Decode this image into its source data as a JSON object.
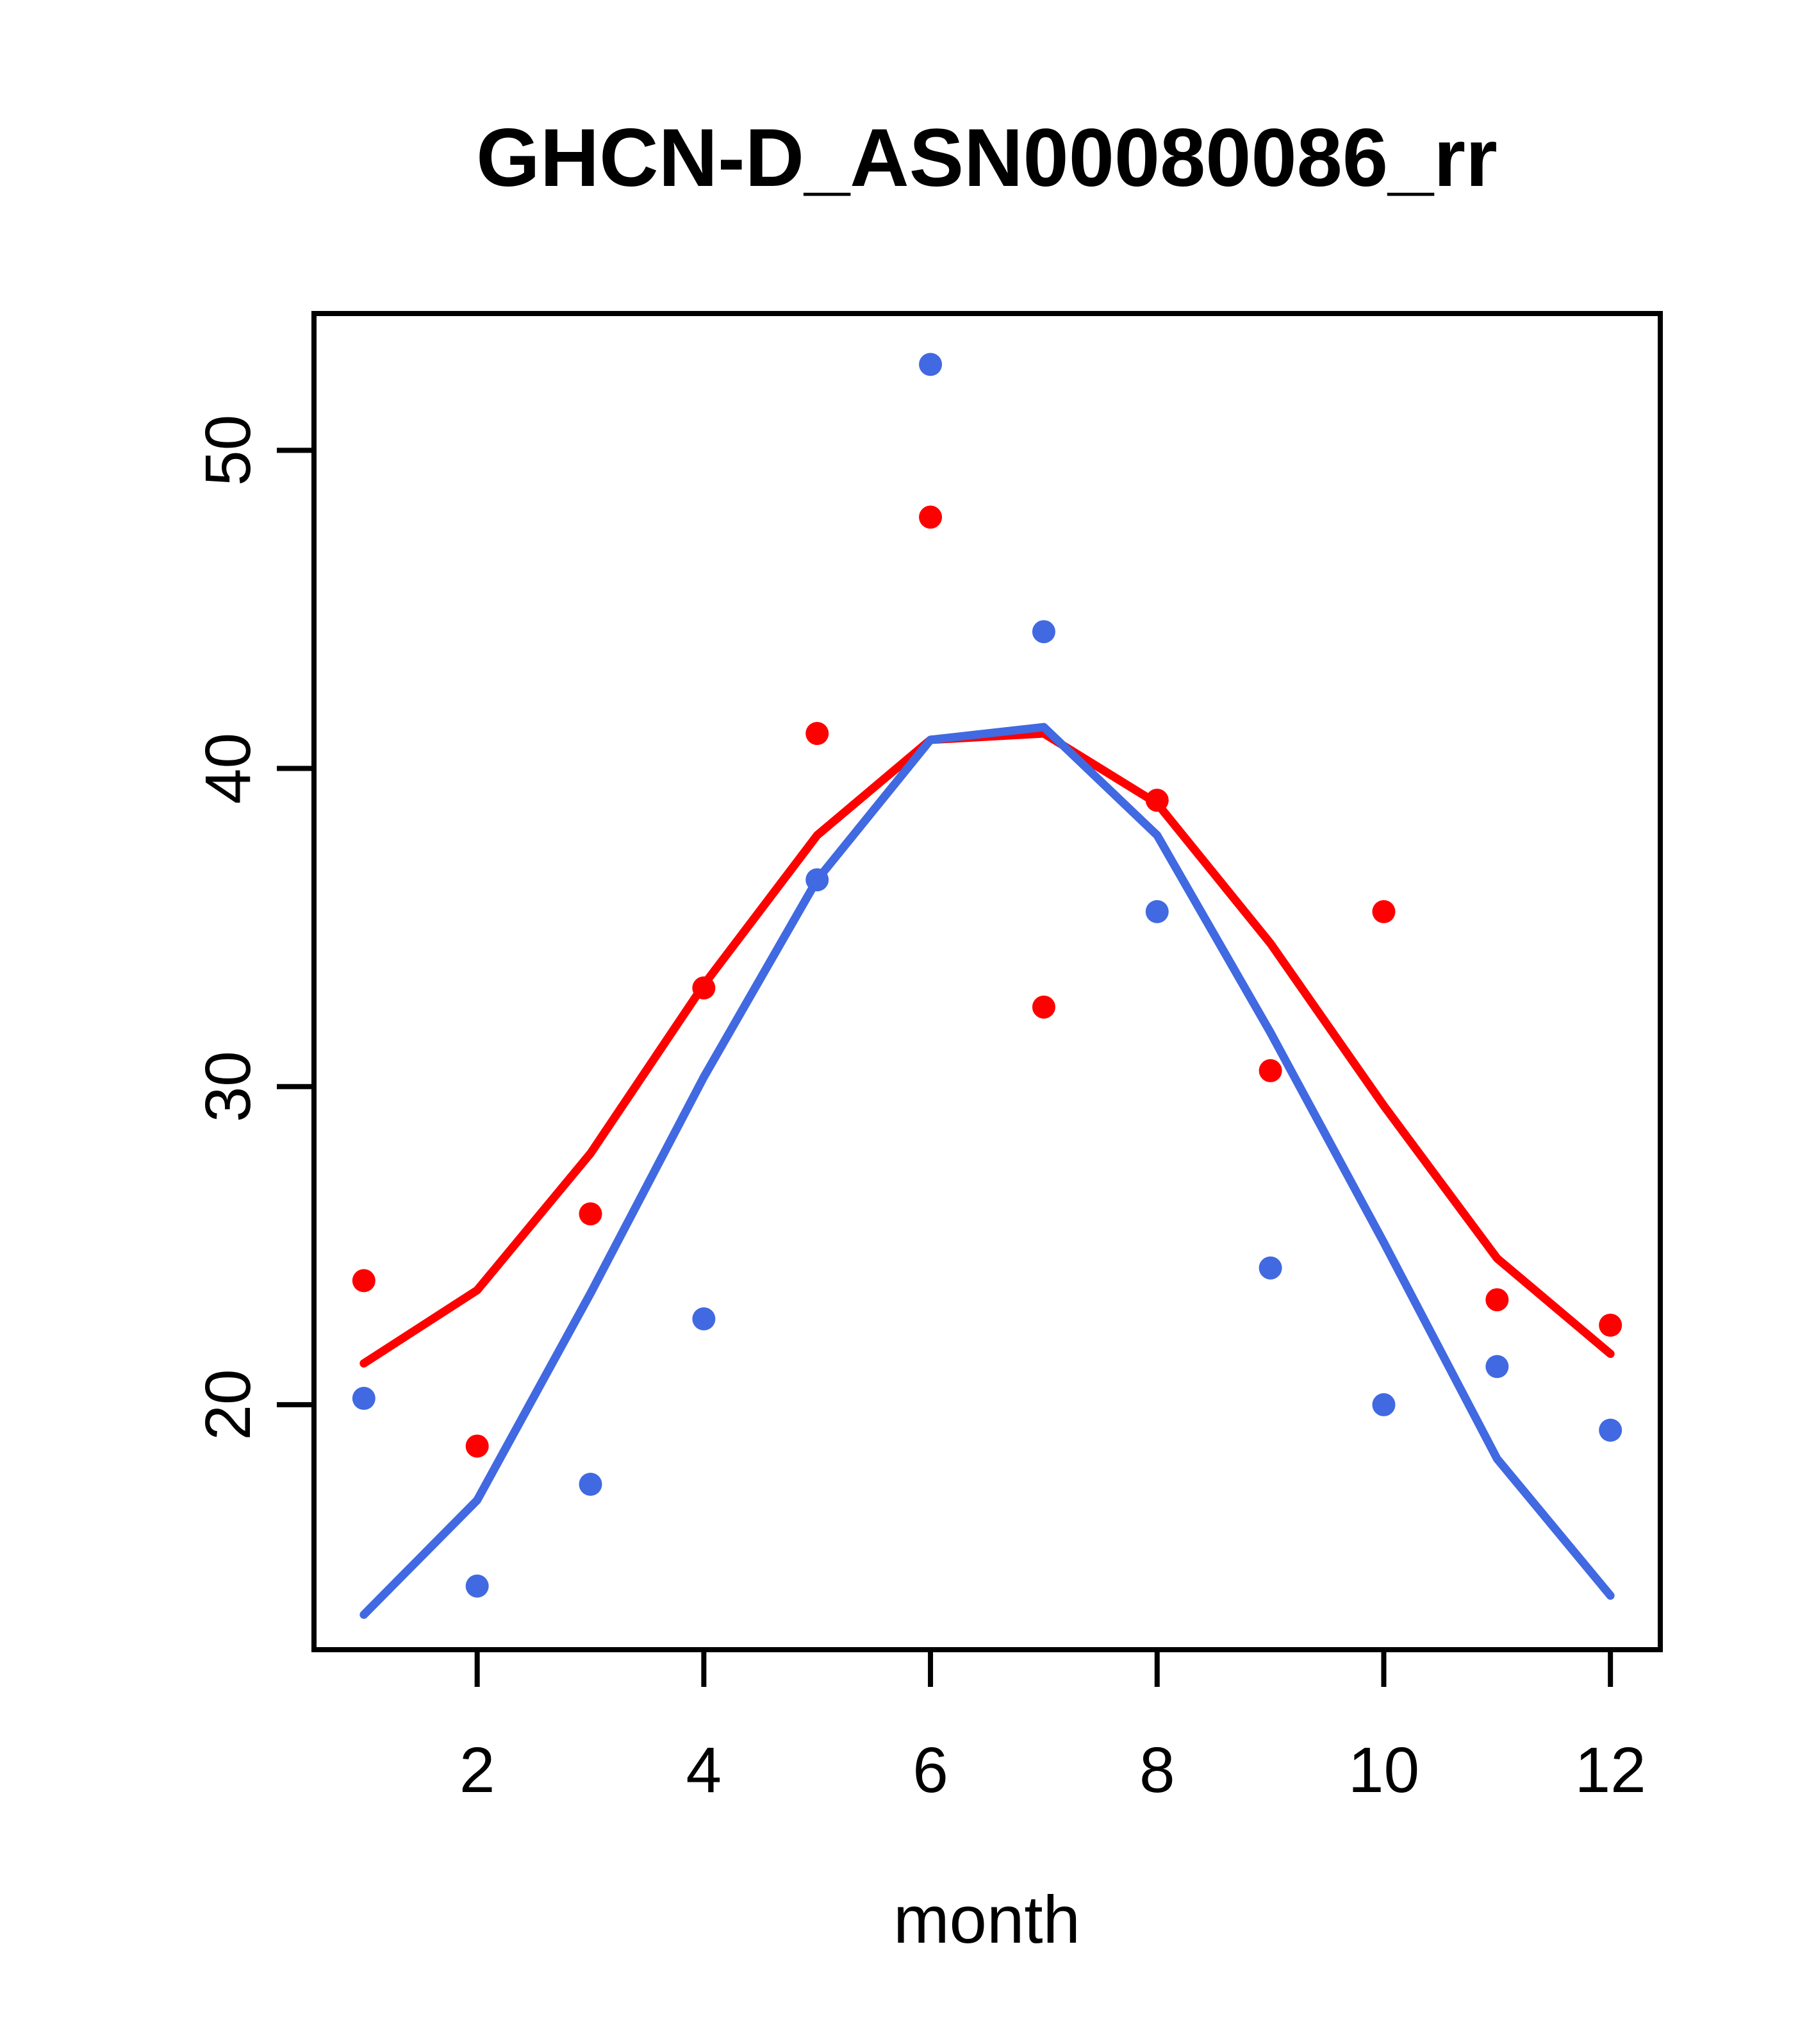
{
  "title": "GHCN-D_ASN00080086_rr",
  "chart_data": {
    "type": "line",
    "title": "GHCN-D_ASN00080086_rr",
    "xlabel": "month",
    "ylabel": "",
    "x": [
      1,
      2,
      3,
      4,
      5,
      6,
      7,
      8,
      9,
      10,
      11,
      12
    ],
    "x_ticks": [
      2,
      4,
      6,
      8,
      10,
      12
    ],
    "y_ticks": [
      20,
      30,
      40,
      50
    ],
    "xlim": [
      0.56,
      12.44
    ],
    "ylim": [
      12.3,
      54.3
    ],
    "grid": false,
    "legend": false,
    "background": "#ffffff",
    "frame_color": "#000000",
    "series": [
      {
        "name": "red-line",
        "kind": "line",
        "color": "#ff0000",
        "values": [
          21.3,
          23.6,
          27.9,
          33.2,
          37.9,
          40.9,
          41.1,
          38.9,
          34.5,
          29.4,
          24.6,
          21.6
        ]
      },
      {
        "name": "blue-line",
        "kind": "line",
        "color": "#4169e1",
        "values": [
          13.4,
          17.0,
          23.5,
          30.3,
          36.5,
          40.9,
          41.3,
          37.9,
          31.7,
          25.1,
          18.3,
          14.0
        ]
      },
      {
        "name": "red-points",
        "kind": "points",
        "color": "#ff0000",
        "values": [
          23.9,
          18.7,
          26.0,
          33.1,
          41.1,
          47.9,
          32.5,
          39.0,
          30.5,
          35.5,
          23.3,
          22.5
        ]
      },
      {
        "name": "blue-points",
        "kind": "points",
        "color": "#4169e1",
        "values": [
          20.2,
          14.3,
          17.5,
          22.7,
          36.5,
          52.7,
          44.3,
          35.5,
          24.3,
          20.0,
          21.2,
          19.2
        ]
      }
    ]
  }
}
